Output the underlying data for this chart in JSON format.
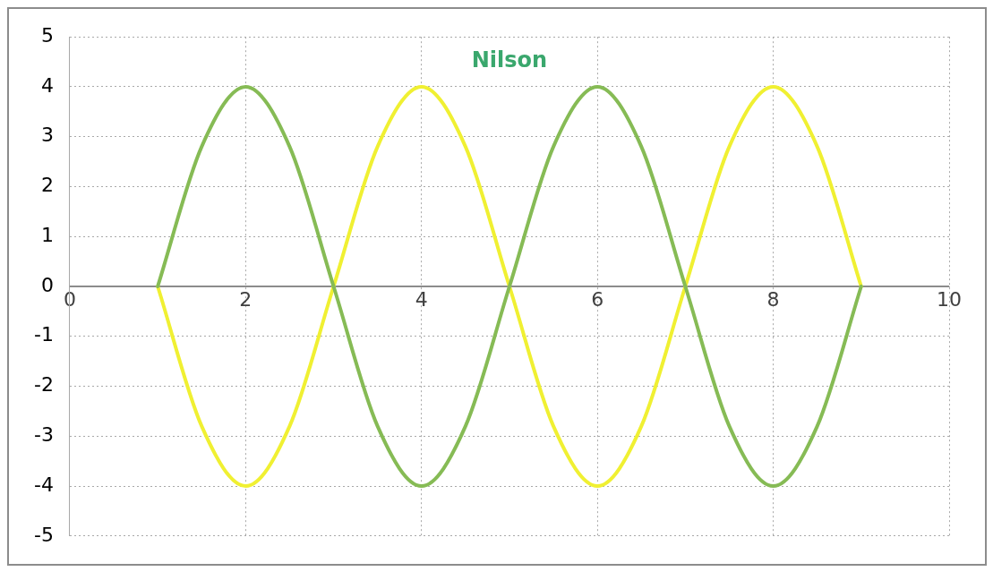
{
  "chart_data": {
    "type": "line",
    "title": "Nilson",
    "x": [
      1,
      1.5,
      2,
      2.5,
      3,
      3.5,
      4,
      4.5,
      5,
      5.5,
      6,
      6.5,
      7,
      7.5,
      8,
      8.5,
      9
    ],
    "series": [
      {
        "color": "#86bb55",
        "values": [
          0,
          2.8,
          4,
          2.8,
          0,
          -2.8,
          -4,
          -2.8,
          0,
          2.8,
          4,
          2.8,
          0,
          -2.8,
          -4,
          -2.8,
          0
        ]
      },
      {
        "color": "#f0f032",
        "values": [
          0,
          -2.8,
          -4,
          -2.8,
          0,
          2.8,
          4,
          2.8,
          0,
          -2.8,
          -4,
          -2.8,
          0,
          2.8,
          4,
          2.8,
          0
        ]
      }
    ],
    "xlim": [
      0,
      10
    ],
    "xticks": [
      0,
      2,
      4,
      6,
      8,
      10
    ],
    "ylim": [
      -5,
      5
    ],
    "yticks": [
      -5,
      -4,
      -3,
      -2,
      -1,
      0,
      1,
      2,
      3,
      4,
      5
    ],
    "grid": true,
    "legend": false,
    "marker": "none",
    "line_style": "solid"
  }
}
